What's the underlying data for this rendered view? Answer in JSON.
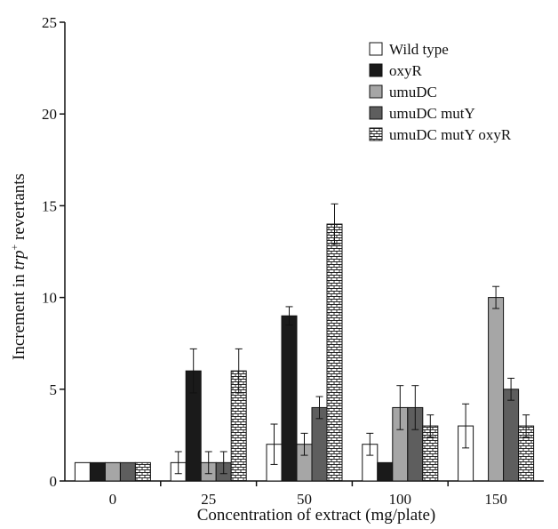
{
  "chart_data": {
    "type": "bar",
    "xlabel": "Concentration of extract (mg/plate)",
    "ylabel": "Increment in trp+ revertants",
    "ylabel_parts": {
      "pre": "Increment in ",
      "italic": "trp",
      "sup": "+",
      "post": " revertants"
    },
    "ylim": [
      0,
      25
    ],
    "yticks": [
      "0",
      "5",
      "10",
      "15",
      "20",
      "25"
    ],
    "categories": [
      "0",
      "25",
      "50",
      "100",
      "150"
    ],
    "legend_position": "top-right",
    "series": [
      {
        "name": "Wild type",
        "fill": "white",
        "values": [
          1,
          1,
          2,
          2,
          3
        ],
        "errors": [
          null,
          0.6,
          1.1,
          0.6,
          1.2
        ]
      },
      {
        "name": "oxyR",
        "fill": "black",
        "values": [
          1,
          6,
          9,
          1,
          null
        ],
        "errors": [
          null,
          1.2,
          0.5,
          null,
          null
        ]
      },
      {
        "name": "umuDC",
        "fill": "light-gray",
        "values": [
          1,
          1,
          2,
          4,
          10
        ],
        "errors": [
          null,
          0.6,
          0.6,
          1.2,
          0.6
        ]
      },
      {
        "name": "umuDC mutY",
        "fill": "dark-gray",
        "values": [
          1,
          1,
          4,
          4,
          5
        ],
        "errors": [
          null,
          0.6,
          0.6,
          1.2,
          0.6
        ]
      },
      {
        "name": "umuDC mutY oxyR",
        "fill": "brick-pattern",
        "values": [
          1,
          6,
          14,
          3,
          3
        ],
        "errors": [
          null,
          1.2,
          1.1,
          0.6,
          0.6
        ]
      }
    ],
    "colors": {
      "white": "#ffffff",
      "black": "#1a1a1a",
      "light-gray": "#a6a6a6",
      "dark-gray": "#5e5e5e",
      "brick-pattern": "#ffffff",
      "outline": "#111111"
    }
  }
}
